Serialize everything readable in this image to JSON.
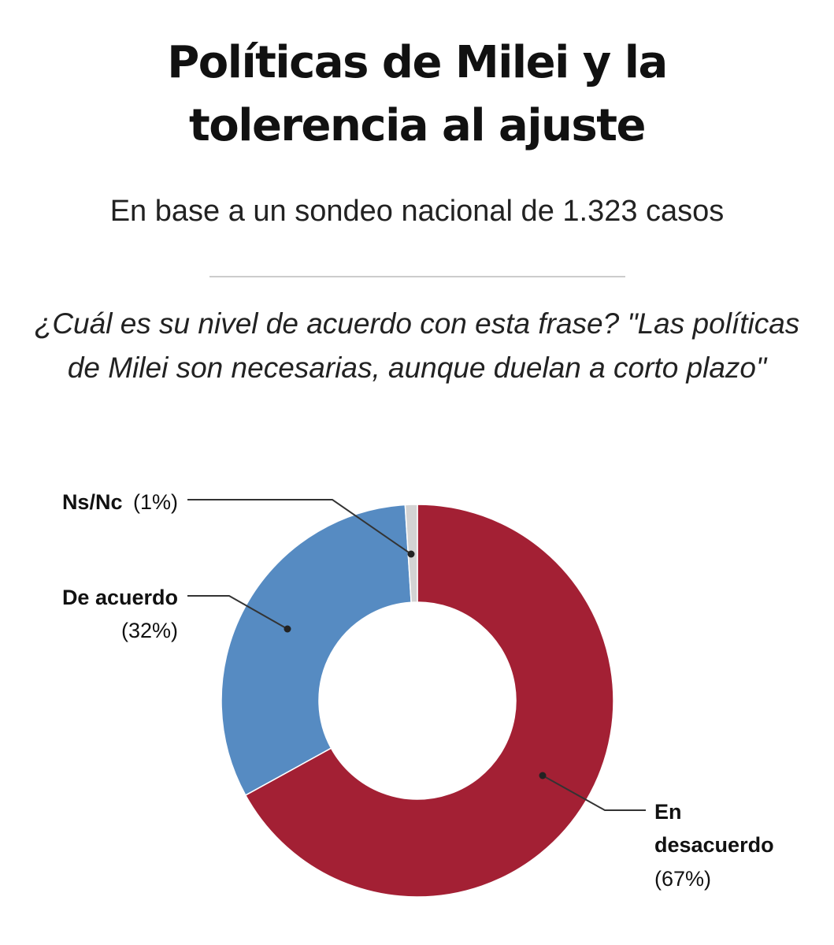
{
  "header": {
    "title_line1": "Políticas de Milei y la",
    "title_line2": "tolerencia al ajuste",
    "subtitle": "En base a un sondeo nacional de 1.323 casos",
    "question": "¿Cuál es su nivel de acuerdo con esta frase? \"Las políticas de Milei son necesarias, aunque duelan a corto plazo\""
  },
  "chart_data": {
    "type": "pie",
    "donut": true,
    "categories": [
      "En desacuerdo",
      "De acuerdo",
      "Ns/Nc"
    ],
    "values": [
      67,
      32,
      1
    ],
    "value_labels": [
      "(67%)",
      "(32%)",
      "(1%)"
    ],
    "colors": [
      "#a32034",
      "#568bc2",
      "#d3d3d3"
    ]
  }
}
